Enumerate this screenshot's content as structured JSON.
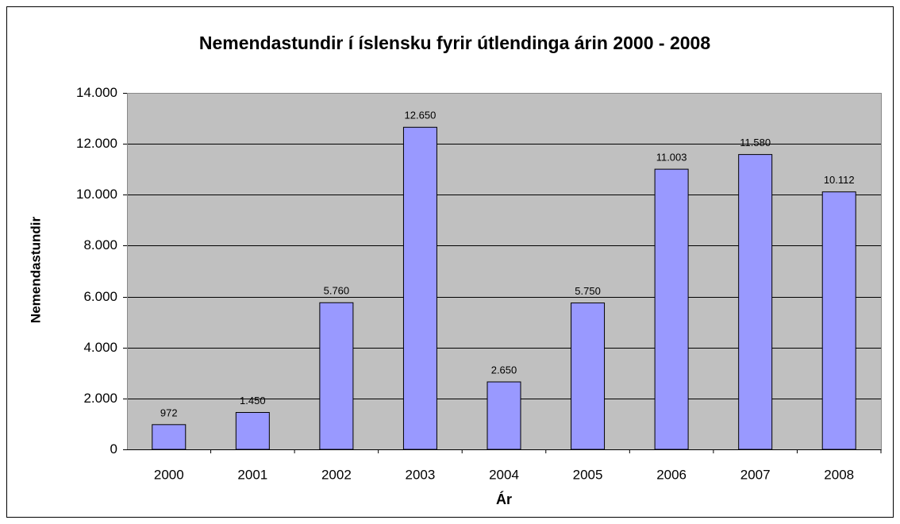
{
  "chart_data": {
    "type": "bar",
    "title": "Nemendastundir í íslensku fyrir útlendinga árin 2000 - 2008",
    "x_label": "Ár",
    "y_label": "Nemendastundir",
    "categories": [
      "2000",
      "2001",
      "2002",
      "2003",
      "2004",
      "2005",
      "2006",
      "2007",
      "2008"
    ],
    "values": [
      972,
      1450,
      5760,
      12650,
      2650,
      5750,
      11003,
      11580,
      10112
    ],
    "value_labels": [
      "972",
      "1.450",
      "5.760",
      "12.650",
      "2.650",
      "5.750",
      "11.003",
      "11.580",
      "10.112"
    ],
    "color": "#9999ff",
    "ylim": [
      0,
      14000
    ],
    "yticks": [
      0,
      {
        "value": 2000,
        "label": "2.000"
      },
      {
        "value": 4000,
        "label": "4.000"
      },
      {
        "value": 6000,
        "label": "6.000"
      },
      {
        "value": 8000,
        "label": "8.000"
      },
      {
        "value": 10000,
        "label": "10.000"
      },
      {
        "value": 12000,
        "label": "12.000"
      },
      {
        "value": 14000,
        "label": "14.000"
      }
    ],
    "grid": true
  }
}
